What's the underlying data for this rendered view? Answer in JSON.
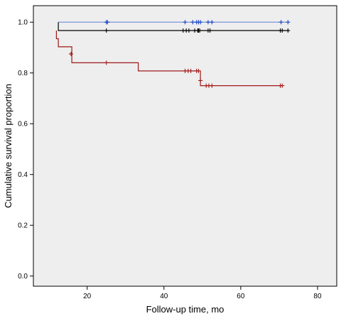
{
  "chart_data": {
    "type": "line",
    "subtype": "kaplan-meier",
    "title": "",
    "xlabel": "Follow-up time, mo",
    "ylabel": "Cumulative survival proportion",
    "xlim": [
      6,
      85
    ],
    "ylim": [
      -0.04,
      1.065
    ],
    "x_ticks": [
      20,
      40,
      60,
      80
    ],
    "x_tick_labels": [
      "20",
      "40",
      "60",
      "80"
    ],
    "y_ticks": [
      0.0,
      0.2,
      0.4,
      0.6,
      0.8,
      1.0
    ],
    "y_tick_labels": [
      "0.0",
      "0.2",
      "0.4",
      "0.6",
      "0.8",
      "1.0"
    ],
    "grid": false,
    "legend": "none",
    "colors": {
      "plot_background": "#eeeeee",
      "axis": "#000000"
    },
    "series": [
      {
        "color": "#6a8fd8",
        "censor_color": "#1a44c8",
        "steps": [
          [
            12.5,
            1.0
          ],
          [
            72.5,
            1.0
          ]
        ],
        "censored": [
          [
            25,
            1.0
          ],
          [
            25.3,
            1.0
          ],
          [
            45.5,
            1.0
          ],
          [
            47.5,
            1.0
          ],
          [
            48.5,
            1.0
          ],
          [
            49.0,
            1.0
          ],
          [
            49.5,
            1.0
          ],
          [
            51.5,
            1.0
          ],
          [
            52.5,
            1.0
          ],
          [
            70.5,
            1.0
          ],
          [
            72.3,
            1.0
          ]
        ]
      },
      {
        "color": "#000000",
        "censor_color": "#000000",
        "steps": [
          [
            12.5,
            1.0
          ],
          [
            12.5,
            0.967
          ],
          [
            72.5,
            0.967
          ]
        ],
        "censored": [
          [
            25,
            0.967
          ],
          [
            45,
            0.967
          ],
          [
            45.8,
            0.967
          ],
          [
            46.5,
            0.967
          ],
          [
            48,
            0.967
          ],
          [
            48.8,
            0.967
          ],
          [
            49.0,
            0.967
          ],
          [
            49.3,
            0.967
          ],
          [
            51.5,
            0.967
          ],
          [
            52,
            0.967
          ],
          [
            70.3,
            0.967
          ],
          [
            70.8,
            0.967
          ],
          [
            72.3,
            0.967
          ]
        ]
      },
      {
        "color": "#a01818",
        "censor_color": "#a01818",
        "steps": [
          [
            12.0,
            0.967
          ],
          [
            12.0,
            0.935
          ],
          [
            12.5,
            0.935
          ],
          [
            12.5,
            0.903
          ],
          [
            16.0,
            0.903
          ],
          [
            16.0,
            0.84
          ],
          [
            33.3,
            0.84
          ],
          [
            33.3,
            0.808
          ],
          [
            49.5,
            0.808
          ],
          [
            49.5,
            0.75
          ],
          [
            71.0,
            0.75
          ]
        ],
        "censored": [
          [
            15.8,
            0.875
          ],
          [
            25,
            0.84
          ],
          [
            45.5,
            0.808
          ],
          [
            46.3,
            0.808
          ],
          [
            47.0,
            0.808
          ],
          [
            48.5,
            0.808
          ],
          [
            49.0,
            0.808
          ],
          [
            49.5,
            0.77
          ],
          [
            51.0,
            0.75
          ],
          [
            51.7,
            0.75
          ],
          [
            52.5,
            0.75
          ],
          [
            70.3,
            0.75
          ],
          [
            70.8,
            0.75
          ]
        ]
      }
    ]
  }
}
